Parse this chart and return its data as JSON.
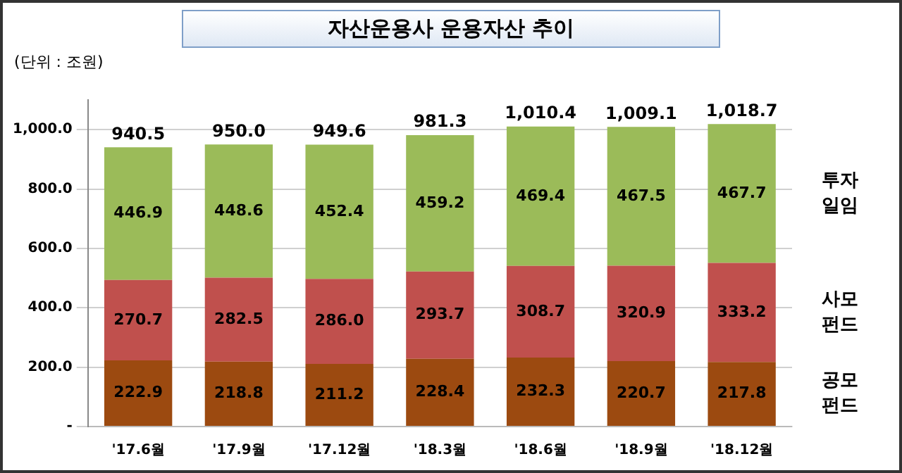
{
  "chart_data": {
    "type": "bar",
    "title": "자산운용사 운용자산 추이",
    "annotations": [
      "(단위 : 조원)"
    ],
    "categories": [
      "'17.6월",
      "'17.9월",
      "'17.12월",
      "'18.3월",
      "'18.6월",
      "'18.9월",
      "'18.12월"
    ],
    "stacked": true,
    "series": [
      {
        "name": "공모펀드",
        "color": "#9c4a10",
        "values": [
          222.9,
          218.8,
          211.2,
          228.4,
          232.3,
          220.7,
          217.8
        ],
        "value_labels": [
          "222.9",
          "218.8",
          "211.2",
          "228.4",
          "232.3",
          "220.7",
          "217.8"
        ]
      },
      {
        "name": "사모펀드",
        "color": "#c0504d",
        "values": [
          270.7,
          282.5,
          286.0,
          293.7,
          308.7,
          320.9,
          333.2
        ],
        "value_labels": [
          "270.7",
          "282.5",
          "286.0",
          "293.7",
          "308.7",
          "320.9",
          "333.2"
        ]
      },
      {
        "name": "투자일임",
        "color": "#9bbb59",
        "values": [
          446.9,
          448.6,
          452.4,
          459.2,
          469.4,
          467.5,
          467.7
        ],
        "value_labels": [
          "446.9",
          "448.6",
          "452.4",
          "459.2",
          "469.4",
          "467.5",
          "467.7"
        ]
      }
    ],
    "totals": [
      "940.5",
      "950.0",
      "949.6",
      "981.3",
      "1,010.4",
      "1,009.1",
      "1,018.7"
    ],
    "ylim": [
      0,
      1100
    ],
    "yticks": [
      {
        "value": 0,
        "label": "-"
      },
      {
        "value": 200,
        "label": "200.0"
      },
      {
        "value": 400,
        "label": "400.0"
      },
      {
        "value": 600,
        "label": "600.0"
      },
      {
        "value": 800,
        "label": "800.0"
      },
      {
        "value": 1000,
        "label": "1,000.0"
      }
    ],
    "grid": "y"
  }
}
